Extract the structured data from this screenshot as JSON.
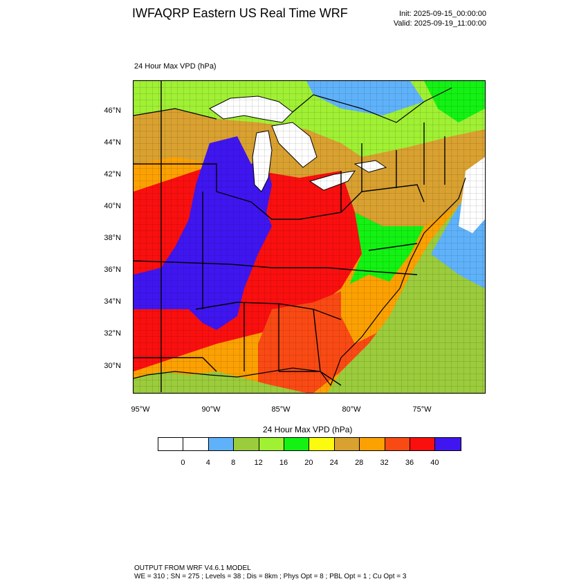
{
  "header": {
    "title": "IWFAQRP Eastern US Real Time WRF",
    "init": "Init: 2025-09-15_00:00:00",
    "valid": "Valid: 2025-09-19_11:00:00"
  },
  "field_label": "24 Hour Max VPD   (hPa)",
  "map": {
    "lat_ticks": [
      "46°N",
      "44°N",
      "42°N",
      "40°N",
      "38°N",
      "36°N",
      "34°N",
      "32°N",
      "30°N"
    ],
    "lon_ticks": [
      "95°W",
      "90°W",
      "85°W",
      "80°W",
      "75°W"
    ],
    "colors": {
      "purple": "#3f16f0",
      "red": "#fa0f0f",
      "redorange": "#fa4a14",
      "orange": "#fca102",
      "gold": "#d9a130",
      "yellow": "#fbfb0f",
      "green": "#13f213",
      "lightgreen": "#a0f034",
      "olive": "#9bcc3c",
      "blue": "#5fb2fa",
      "white": "#ffffff"
    }
  },
  "colorbar": {
    "title": "24 Hour Max VPD  (hPa)",
    "colors": [
      "#ffffff",
      "#ffffff",
      "#5fb2fa",
      "#9bcc3c",
      "#a0f034",
      "#13f213",
      "#fbfb0f",
      "#d9a130",
      "#fca102",
      "#fa4a14",
      "#fa0f0f",
      "#3f16f0"
    ],
    "labels": [
      "0",
      "4",
      "8",
      "12",
      "16",
      "20",
      "24",
      "28",
      "32",
      "36",
      "40"
    ]
  },
  "footer": {
    "line1": "OUTPUT FROM WRF V4.6.1 MODEL",
    "line2": "WE = 310 ; SN = 275 ; Levels = 38 ; Dis = 8km ; Phys Opt = 8 ; PBL Opt = 1 ; Cu Opt = 3"
  }
}
